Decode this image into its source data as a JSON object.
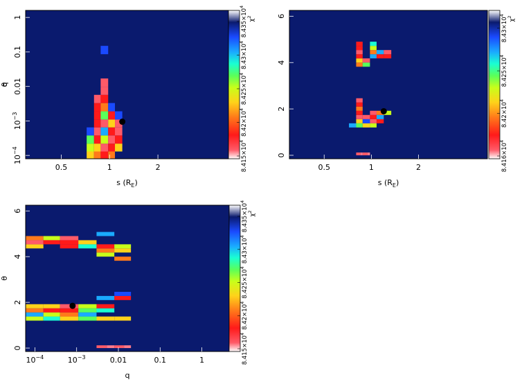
{
  "colors": {
    "background_cell": "#0a1a6e",
    "scale": [
      "#ff5a68",
      "#ff1a1a",
      "#ff7a1a",
      "#ffd21a",
      "#c8ff1a",
      "#5aff5a",
      "#1affd2",
      "#1aaaff",
      "#1a4aff",
      "#0a1a6e"
    ]
  },
  "chart_data": [
    {
      "type": "heatmap",
      "id": "s-q",
      "xlabel_main": "s (R",
      "xlabel_sub": "E",
      "xlabel_close": ")",
      "ylabel": "q",
      "x_scale": "log",
      "y_scale": "log",
      "xlim": [
        0.3,
        5.5
      ],
      "ylim": [
        8e-05,
        1.6
      ],
      "x_ticks": [
        {
          "v": 0.5,
          "label": "0.5"
        },
        {
          "v": 1,
          "label": "1"
        },
        {
          "v": 2,
          "label": "2"
        }
      ],
      "y_ticks": [
        {
          "v": 0.0001,
          "base": "10",
          "exp": "−4"
        },
        {
          "v": 0.001,
          "base": "10",
          "exp": "−3"
        },
        {
          "v": 0.01,
          "label": "0.01"
        },
        {
          "v": 0.1,
          "label": "0.1"
        },
        {
          "v": 1,
          "label": "1"
        }
      ],
      "x_edges": [
        0.72,
        0.8,
        0.88,
        0.98,
        1.08,
        1.2,
        1.34
      ],
      "y_edges": [
        8e-05,
        0.00013,
        0.00022,
        0.00038,
        0.00065,
        0.0011,
        0.0019,
        0.0033,
        0.0057,
        0.0098,
        0.017,
        0.029,
        0.05,
        0.086,
        0.15
      ],
      "cells": [
        [
          0,
          0,
          3
        ],
        [
          0,
          1,
          4
        ],
        [
          0,
          2,
          5
        ],
        [
          0,
          3,
          8
        ],
        [
          1,
          0,
          2
        ],
        [
          1,
          1,
          3
        ],
        [
          1,
          2,
          1
        ],
        [
          1,
          3,
          0
        ],
        [
          1,
          4,
          1
        ],
        [
          1,
          5,
          1
        ],
        [
          1,
          6,
          1
        ],
        [
          1,
          7,
          0
        ],
        [
          2,
          0,
          1
        ],
        [
          2,
          1,
          0
        ],
        [
          2,
          2,
          4
        ],
        [
          2,
          3,
          7
        ],
        [
          2,
          4,
          0
        ],
        [
          2,
          5,
          5
        ],
        [
          2,
          6,
          2
        ],
        [
          2,
          7,
          1
        ],
        [
          2,
          8,
          0
        ],
        [
          2,
          9,
          0
        ],
        [
          2,
          12,
          9
        ],
        [
          2,
          13,
          8
        ],
        [
          3,
          0,
          2
        ],
        [
          3,
          1,
          1
        ],
        [
          3,
          2,
          0
        ],
        [
          3,
          3,
          1
        ],
        [
          3,
          4,
          3
        ],
        [
          3,
          5,
          1
        ],
        [
          3,
          6,
          8
        ],
        [
          4,
          1,
          3
        ],
        [
          4,
          2,
          1
        ],
        [
          4,
          3,
          0
        ],
        [
          4,
          4,
          0
        ],
        [
          4,
          5,
          8
        ]
      ],
      "best_fit": {
        "x": 1.2,
        "y": 0.00095
      },
      "cbar_labels": [
        {
          "base": "8.415×10",
          "exp": "4"
        },
        {
          "base": "8.42×10",
          "exp": "4"
        },
        {
          "base": "8.425×10",
          "exp": "4"
        },
        {
          "base": "8.43×10",
          "exp": "4"
        },
        {
          "base": "8.435×10",
          "exp": "4"
        }
      ],
      "cbar_title_main": "χ",
      "cbar_title_exp": "2"
    },
    {
      "type": "heatmap",
      "id": "s-theta",
      "xlabel_main": "s (R",
      "xlabel_sub": "E",
      "xlabel_close": ")",
      "ylabel": "θ",
      "x_scale": "log",
      "y_scale": "linear",
      "xlim": [
        0.3,
        5.5
      ],
      "ylim": [
        -0.15,
        6.25
      ],
      "x_ticks": [
        {
          "v": 0.5,
          "label": "0.5"
        },
        {
          "v": 1,
          "label": "1"
        },
        {
          "v": 2,
          "label": "2"
        }
      ],
      "y_ticks": [
        {
          "v": 0,
          "label": "0"
        },
        {
          "v": 2,
          "label": "2"
        },
        {
          "v": 4,
          "label": "4"
        },
        {
          "v": 6,
          "label": "6"
        }
      ],
      "x_edges": [
        0.72,
        0.8,
        0.88,
        0.98,
        1.08,
        1.2,
        1.34
      ],
      "y_edges": [
        1.2,
        1.38,
        1.56,
        1.74,
        1.92,
        2.1,
        2.28,
        2.46
      ],
      "cells": [
        [
          0,
          0,
          7
        ],
        [
          1,
          0,
          5
        ],
        [
          1,
          1,
          3
        ],
        [
          1,
          2,
          0
        ],
        [
          1,
          3,
          1
        ],
        [
          1,
          4,
          2
        ],
        [
          1,
          5,
          1
        ],
        [
          1,
          6,
          0
        ],
        [
          2,
          0,
          3
        ],
        [
          2,
          1,
          8
        ],
        [
          2,
          2,
          0
        ],
        [
          3,
          0,
          4
        ],
        [
          3,
          1,
          0
        ],
        [
          3,
          2,
          1
        ],
        [
          3,
          3,
          0
        ],
        [
          4,
          1,
          1
        ],
        [
          4,
          2,
          7
        ],
        [
          4,
          3,
          2
        ],
        [
          5,
          3,
          4
        ]
      ],
      "cells_top": {
        "y_edges": [
          3.82,
          4.0,
          4.18,
          4.36,
          4.54,
          4.72,
          4.9,
          5.08
        ],
        "cells": [
          [
            1,
            0,
            2
          ],
          [
            1,
            1,
            3
          ],
          [
            1,
            2,
            1
          ],
          [
            1,
            3,
            0
          ],
          [
            1,
            4,
            1
          ],
          [
            1,
            5,
            1
          ],
          [
            2,
            0,
            5
          ],
          [
            2,
            1,
            0
          ],
          [
            3,
            2,
            7
          ],
          [
            3,
            3,
            2
          ],
          [
            3,
            4,
            4
          ],
          [
            3,
            5,
            6
          ],
          [
            4,
            2,
            1
          ],
          [
            4,
            3,
            7
          ],
          [
            5,
            2,
            1
          ],
          [
            5,
            3,
            0
          ]
        ]
      },
      "cells_bottom": [
        [
          1,
          0,
          0
        ],
        [
          2,
          0,
          0
        ]
      ],
      "cells_bottom_edges": [
        0,
        0.12
      ],
      "best_fit": {
        "x": 1.2,
        "y": 1.9
      },
      "cbar_labels": [
        {
          "base": "8.416×10",
          "exp": "4"
        },
        {
          "base": "8.42×10",
          "exp": "4"
        },
        {
          "base": "8.425×10",
          "exp": "4"
        },
        {
          "base": "8.43×10",
          "exp": "4"
        }
      ],
      "cbar_title_main": "χ",
      "cbar_title_exp": "2"
    },
    {
      "type": "heatmap",
      "id": "q-theta",
      "xlabel_main": "q",
      "xlabel_sub": "",
      "xlabel_close": "",
      "ylabel": "θ",
      "x_scale": "log",
      "y_scale": "linear",
      "xlim": [
        6e-05,
        4.5
      ],
      "ylim": [
        -0.15,
        6.25
      ],
      "x_ticks": [
        {
          "v": 0.0001,
          "base": "10",
          "exp": "−4"
        },
        {
          "v": 0.001,
          "base": "10",
          "exp": "−3"
        },
        {
          "v": 0.01,
          "label": "0.01"
        },
        {
          "v": 0.1,
          "label": "0.1"
        },
        {
          "v": 1,
          "label": "1"
        }
      ],
      "y_ticks": [
        {
          "v": 0,
          "label": "0"
        },
        {
          "v": 2,
          "label": "2"
        },
        {
          "v": 4,
          "label": "4"
        },
        {
          "v": 6,
          "label": "6"
        }
      ],
      "x_edges": [
        6e-05,
        0.00016,
        0.0004,
        0.0011,
        0.003,
        0.008,
        0.02
      ],
      "y_edges": [
        1.2,
        1.38,
        1.56,
        1.74,
        1.92,
        2.1,
        2.28,
        2.46
      ],
      "cells": [
        [
          0,
          0,
          4
        ],
        [
          0,
          1,
          7
        ],
        [
          0,
          2,
          2
        ],
        [
          0,
          3,
          3
        ],
        [
          1,
          0,
          6
        ],
        [
          1,
          1,
          4
        ],
        [
          1,
          2,
          1
        ],
        [
          1,
          3,
          3
        ],
        [
          2,
          0,
          3
        ],
        [
          2,
          1,
          2
        ],
        [
          2,
          2,
          1
        ],
        [
          2,
          3,
          0
        ],
        [
          3,
          0,
          5
        ],
        [
          3,
          1,
          7
        ],
        [
          3,
          2,
          5
        ],
        [
          3,
          3,
          4
        ],
        [
          4,
          0,
          3
        ],
        [
          4,
          2,
          6
        ],
        [
          4,
          3,
          1
        ],
        [
          4,
          5,
          7
        ],
        [
          5,
          0,
          3
        ],
        [
          5,
          5,
          1
        ],
        [
          5,
          6,
          8
        ]
      ],
      "cells_top": {
        "y_edges": [
          3.82,
          4.0,
          4.18,
          4.36,
          4.54,
          4.72,
          4.9,
          5.08
        ],
        "cells": [
          [
            0,
            3,
            3
          ],
          [
            0,
            4,
            0
          ],
          [
            0,
            5,
            2
          ],
          [
            1,
            5,
            4
          ],
          [
            1,
            4,
            1
          ],
          [
            2,
            3,
            1
          ],
          [
            2,
            4,
            1
          ],
          [
            2,
            5,
            0
          ],
          [
            3,
            3,
            6
          ],
          [
            3,
            4,
            3
          ],
          [
            4,
            1,
            4
          ],
          [
            4,
            2,
            2
          ],
          [
            4,
            3,
            1
          ],
          [
            4,
            6,
            7
          ],
          [
            5,
            0,
            2
          ],
          [
            5,
            2,
            3
          ],
          [
            5,
            3,
            4
          ]
        ]
      },
      "cells_bottom": [
        [
          4,
          0,
          0
        ],
        [
          5,
          0,
          0
        ]
      ],
      "cells_bottom_edges": [
        0,
        0.12
      ],
      "best_fit": {
        "x": 0.0008,
        "y": 1.85
      },
      "cbar_labels": [
        {
          "base": "8.415×10",
          "exp": "4"
        },
        {
          "base": "8.42×10",
          "exp": "4"
        },
        {
          "base": "8.425×10",
          "exp": "4"
        },
        {
          "base": "8.43×10",
          "exp": "4"
        },
        {
          "base": "8.435×10",
          "exp": "4"
        }
      ],
      "cbar_title_main": "χ",
      "cbar_title_exp": "2"
    }
  ]
}
